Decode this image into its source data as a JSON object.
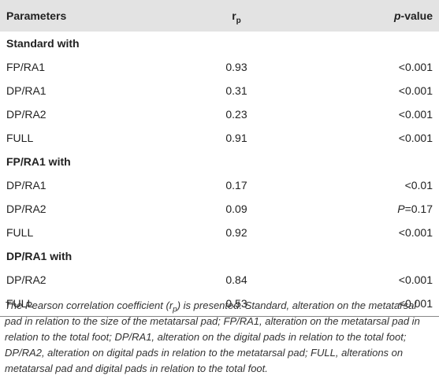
{
  "header": [
    "Parameters",
    {
      "base": "r",
      "sub": "p"
    },
    {
      "italic": "p",
      "rest": "-value"
    }
  ],
  "sections": [
    {
      "title": "Standard with",
      "rows": [
        [
          "FP/RA1",
          "0.93",
          "<0.001"
        ],
        [
          "DP/RA1",
          "0.31",
          "<0.001"
        ],
        [
          "DP/RA2",
          "0.23",
          "<0.001"
        ],
        [
          "FULL",
          "0.91",
          "<0.001"
        ]
      ]
    },
    {
      "title": "FP/RA1 with",
      "rows": [
        [
          "DP/RA1",
          "0.17",
          "<0.01"
        ],
        [
          "DP/RA2",
          "0.09",
          {
            "italic": "P",
            "rest": "=0.17"
          }
        ],
        [
          "FULL",
          "0.92",
          "<0.001"
        ]
      ]
    },
    {
      "title": "DP/RA1 with",
      "rows": [
        [
          "DP/RA2",
          "0.84",
          "<0.001"
        ],
        [
          "FULL",
          "0.53",
          "<0.001"
        ]
      ]
    }
  ],
  "footnote": [
    {
      "text": "The Pearson correlation coefficient (r"
    },
    {
      "sub": "p"
    },
    {
      "text": ") is presented. Standard, alteration on the metatarsal pad in relation to the size of the metatarsal pad; FP/RA1, alteration on the metatarsal pad in relation to the total foot; DP/RA1, alteration on the digital pads in relation to the total foot; DP/RA2, alteration on digital pads in relation to the metatarsal pad; FULL, alterations on metatarsal pad and digital pads in relation to the total foot."
    }
  ]
}
